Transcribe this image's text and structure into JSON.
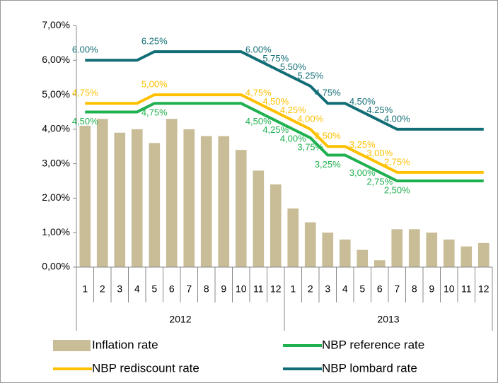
{
  "chart_data": {
    "type": "combo",
    "categories": [
      "1",
      "2",
      "3",
      "4",
      "5",
      "6",
      "7",
      "8",
      "9",
      "10",
      "11",
      "12",
      "1",
      "2",
      "3",
      "4",
      "5",
      "6",
      "7",
      "8",
      "9",
      "10",
      "11",
      "12"
    ],
    "category_groups": [
      "2012",
      "2013"
    ],
    "ylim": [
      0,
      7
    ],
    "yticks": [
      {
        "value": 0,
        "label": "0,00%"
      },
      {
        "value": 1,
        "label": "1,00%"
      },
      {
        "value": 2,
        "label": "2,00%"
      },
      {
        "value": 3,
        "label": "3,00%"
      },
      {
        "value": 4,
        "label": "4,00%"
      },
      {
        "value": 5,
        "label": "5,00%"
      },
      {
        "value": 6,
        "label": "6,00%"
      },
      {
        "value": 7,
        "label": "7,00%"
      }
    ],
    "series": [
      {
        "name": "Inflation rate",
        "type": "bar",
        "color": "#c9bd98",
        "values": [
          4.1,
          4.3,
          3.9,
          4.0,
          3.6,
          4.3,
          4.0,
          3.8,
          3.8,
          3.4,
          2.8,
          2.4,
          1.7,
          1.3,
          1.0,
          0.8,
          0.5,
          0.2,
          1.1,
          1.1,
          1.0,
          0.8,
          0.6,
          0.7
        ]
      },
      {
        "name": "NBP reference rate",
        "type": "line",
        "color": "#1fb04f",
        "label_side": "below",
        "values": [
          4.5,
          4.5,
          4.5,
          4.5,
          4.75,
          4.75,
          4.75,
          4.75,
          4.75,
          4.75,
          4.5,
          4.25,
          4.0,
          3.75,
          3.25,
          3.25,
          3.0,
          2.75,
          2.5,
          2.5,
          2.5,
          2.5,
          2.5,
          2.5
        ],
        "value_labels": [
          "4,50%",
          null,
          null,
          null,
          "4,75%",
          null,
          null,
          null,
          null,
          null,
          "4,50%",
          "4,25%",
          "4,00%",
          "3,75%",
          "3,25%",
          null,
          "3,00%",
          "2,75%",
          "2,50%",
          null,
          null,
          null,
          null,
          null
        ]
      },
      {
        "name": "NBP rediscount rate",
        "type": "line",
        "color": "#ffc000",
        "label_side": "above",
        "values": [
          4.75,
          4.75,
          4.75,
          4.75,
          5.0,
          5.0,
          5.0,
          5.0,
          5.0,
          5.0,
          4.75,
          4.5,
          4.25,
          4.0,
          3.5,
          3.5,
          3.25,
          3.0,
          2.75,
          2.75,
          2.75,
          2.75,
          2.75,
          2.75
        ],
        "value_labels": [
          "4,75%",
          null,
          null,
          null,
          "5,00%",
          null,
          null,
          null,
          null,
          null,
          "4,75%",
          "4,50%",
          "4,25%",
          "4,00%",
          "3,50%",
          null,
          "3,25%",
          "3,00%",
          "2,75%",
          null,
          null,
          null,
          null,
          null
        ]
      },
      {
        "name": "NBP lombard rate",
        "type": "line",
        "color": "#126e76",
        "label_side": "above",
        "values": [
          6.0,
          6.0,
          6.0,
          6.0,
          6.25,
          6.25,
          6.25,
          6.25,
          6.25,
          6.25,
          6.0,
          5.75,
          5.5,
          5.25,
          4.75,
          4.75,
          4.5,
          4.25,
          4.0,
          4.0,
          4.0,
          4.0,
          4.0,
          4.0
        ],
        "value_labels": [
          "6.00%",
          null,
          null,
          null,
          "6.25%",
          null,
          null,
          null,
          null,
          null,
          "6.00%",
          "5.75%",
          "5.50%",
          "5.25%",
          "4.75%",
          null,
          "4.50%",
          "4.25%",
          "4.00%",
          null,
          null,
          null,
          null,
          null
        ]
      }
    ]
  }
}
